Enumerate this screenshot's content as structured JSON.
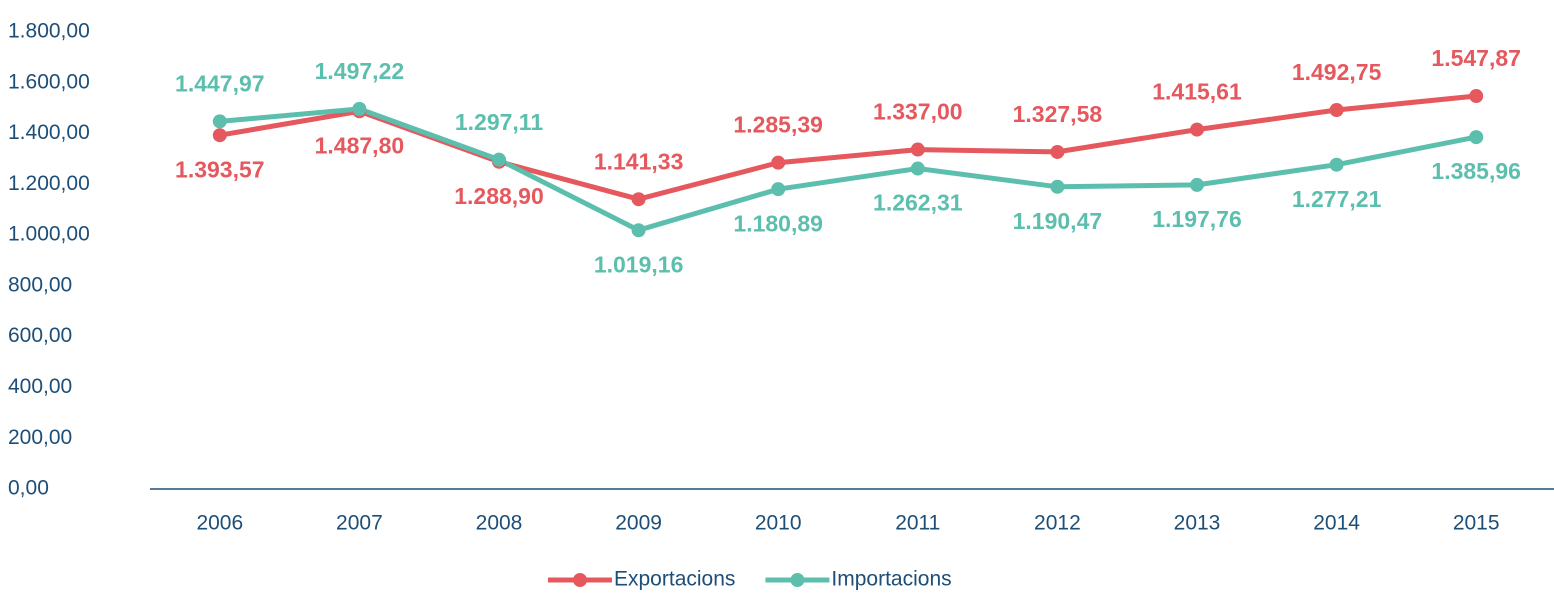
{
  "chart_data": {
    "type": "line",
    "categories": [
      "2006",
      "2007",
      "2008",
      "2009",
      "2010",
      "2011",
      "2012",
      "2013",
      "2014",
      "2015"
    ],
    "series": [
      {
        "name": "Exportacions",
        "color": "#e5585e",
        "values": [
          1393.57,
          1487.8,
          1288.9,
          1141.33,
          1285.39,
          1337.0,
          1327.58,
          1415.61,
          1492.75,
          1547.87
        ],
        "value_labels": [
          "1.393,57",
          "1.487,80",
          "1.288,90",
          "1.141,33",
          "1.285,39",
          "1.337,00",
          "1.327,58",
          "1.415,61",
          "1.492,75",
          "1.547,87"
        ]
      },
      {
        "name": "Importacions",
        "color": "#5cbfae",
        "values": [
          1447.97,
          1497.22,
          1297.11,
          1019.16,
          1180.89,
          1262.31,
          1190.47,
          1197.76,
          1277.21,
          1385.96
        ],
        "value_labels": [
          "1.447,97",
          "1.497,22",
          "1.297,11",
          "1.019,16",
          "1.180,89",
          "1.262,31",
          "1.190,47",
          "1.197,76",
          "1.277,21",
          "1.385,96"
        ]
      }
    ],
    "ylim": [
      0,
      1800
    ],
    "yticks": [
      {
        "value": 0,
        "label": "0,00"
      },
      {
        "value": 200,
        "label": "200,00"
      },
      {
        "value": 400,
        "label": "400,00"
      },
      {
        "value": 600,
        "label": "600,00"
      },
      {
        "value": 800,
        "label": "800,00"
      },
      {
        "value": 1000,
        "label": "1.000,00"
      },
      {
        "value": 1200,
        "label": "1.200,00"
      },
      {
        "value": 1400,
        "label": "1.400,00"
      },
      {
        "value": 1600,
        "label": "1.600,00"
      },
      {
        "value": 1800,
        "label": "1.800,00"
      }
    ],
    "grid": false,
    "legend": "bottom"
  }
}
